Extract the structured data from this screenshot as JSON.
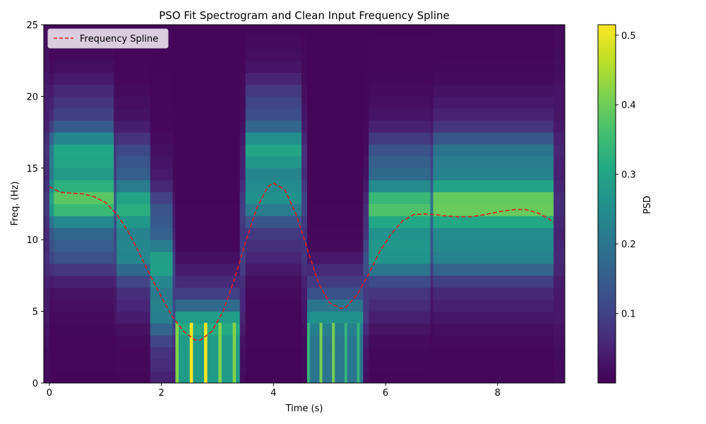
{
  "chart_data": {
    "type": "heatmap",
    "title": "PSO Fit Spectrogram and Clean Input Frequency Spline",
    "xlabel": "Time (s)",
    "ylabel": "Freq. (Hz)",
    "xlim": [
      -0.1,
      9.2
    ],
    "ylim": [
      0,
      25
    ],
    "xticks": [
      "0",
      "2",
      "4",
      "6",
      "8"
    ],
    "yticks": [
      "0",
      "5",
      "10",
      "15",
      "20",
      "25"
    ],
    "colorbar": {
      "label": "PSD",
      "range": [
        0.0,
        0.515
      ],
      "ticks": [
        "0.1",
        "0.2",
        "0.3",
        "0.4",
        "0.5"
      ],
      "colormap": "viridis"
    },
    "legend": {
      "position": "top-left",
      "entries": [
        "Frequency Spline"
      ]
    },
    "spline": {
      "name": "Frequency Spline",
      "color": "#e41a1c",
      "style": "dashed",
      "x": [
        0.0,
        0.2,
        0.4,
        0.6,
        0.8,
        1.0,
        1.2,
        1.4,
        1.6,
        1.8,
        2.0,
        2.2,
        2.4,
        2.6,
        2.7,
        2.9,
        3.1,
        3.3,
        3.5,
        3.7,
        3.9,
        4.0,
        4.2,
        4.4,
        4.6,
        4.8,
        5.0,
        5.2,
        5.3,
        5.5,
        5.7,
        5.9,
        6.1,
        6.3,
        6.5,
        6.7,
        6.9,
        7.1,
        7.3,
        7.5,
        7.7,
        7.9,
        8.1,
        8.3,
        8.5,
        8.7,
        8.9,
        9.0
      ],
      "y": [
        13.7,
        13.3,
        13.25,
        13.2,
        13.0,
        12.6,
        11.8,
        10.6,
        9.1,
        7.5,
        6.0,
        4.6,
        3.6,
        3.0,
        3.0,
        3.6,
        5.0,
        7.2,
        9.8,
        12.2,
        13.7,
        13.95,
        13.5,
        11.8,
        9.4,
        7.0,
        5.6,
        5.2,
        5.3,
        6.2,
        7.6,
        9.2,
        10.4,
        11.3,
        11.75,
        11.8,
        11.75,
        11.65,
        11.6,
        11.6,
        11.7,
        11.85,
        12.0,
        12.1,
        12.1,
        11.9,
        11.5,
        11.2
      ]
    },
    "segments": [
      {
        "t0": -0.1,
        "t1": 0.0,
        "center": 13.0,
        "width": 8.0,
        "peak": 0.08
      },
      {
        "t0": 0.0,
        "t1": 0.08,
        "center": 13.5,
        "width": 4.5,
        "peak": 0.3
      },
      {
        "t0": 0.08,
        "t1": 1.15,
        "center": 13.8,
        "width": 4.6,
        "peak": 0.4
      },
      {
        "t0": 1.15,
        "t1": 1.2,
        "center": 12.0,
        "width": 5.0,
        "peak": 0.15
      },
      {
        "t0": 1.2,
        "t1": 1.8,
        "center": 11.5,
        "width": 4.5,
        "peak": 0.33
      },
      {
        "t0": 1.8,
        "t1": 2.2,
        "center": 7.5,
        "width": 5.0,
        "peak": 0.3
      },
      {
        "t0": 2.2,
        "t1": 2.25,
        "center": 6.0,
        "width": 5.0,
        "peak": 0.12
      },
      {
        "t0": 2.25,
        "t1": 3.4,
        "center": 3.0,
        "width": 3.2,
        "peak": 0.35,
        "bursts": true
      },
      {
        "t0": 3.4,
        "t1": 3.5,
        "center": 10.0,
        "width": 6.0,
        "peak": 0.1
      },
      {
        "t0": 3.5,
        "t1": 4.5,
        "center": 15.0,
        "width": 4.5,
        "peak": 0.32
      },
      {
        "t0": 4.5,
        "t1": 4.6,
        "center": 12.0,
        "width": 6.0,
        "peak": 0.1
      },
      {
        "t0": 4.6,
        "t1": 5.6,
        "center": 4.5,
        "width": 2.8,
        "peak": 0.25,
        "bursts": true
      },
      {
        "t0": 5.6,
        "t1": 5.7,
        "center": 8.0,
        "width": 5.0,
        "peak": 0.12
      },
      {
        "t0": 5.7,
        "t1": 6.8,
        "center": 11.5,
        "width": 4.5,
        "peak": 0.38
      },
      {
        "t0": 6.8,
        "t1": 6.85,
        "center": 12.0,
        "width": 4.5,
        "peak": 0.2
      },
      {
        "t0": 6.85,
        "t1": 9.0,
        "center": 12.3,
        "width": 4.6,
        "peak": 0.4
      },
      {
        "t0": 9.0,
        "t1": 9.2,
        "center": 12.0,
        "width": 8.0,
        "peak": 0.06
      }
    ]
  }
}
